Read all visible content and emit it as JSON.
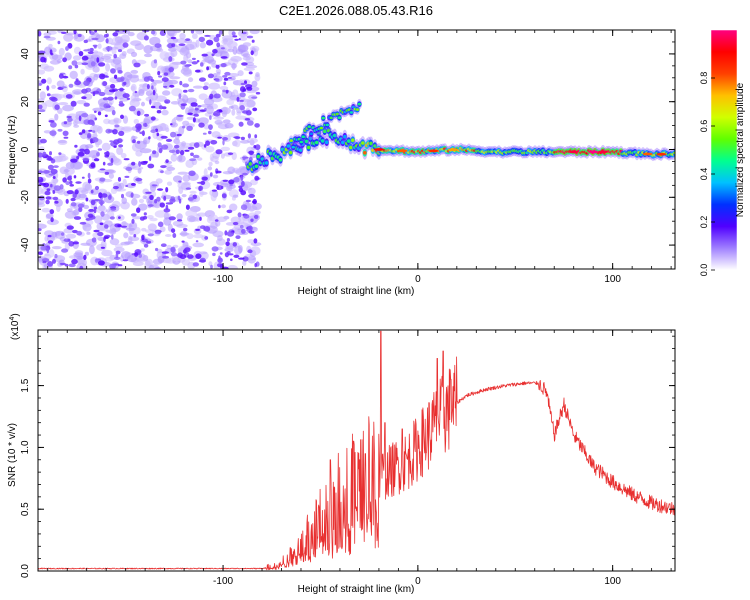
{
  "title": "C2E1.2026.088.05.43.R16",
  "chart_data": [
    {
      "type": "heatmap",
      "xlabel": "Height of straight line (km)",
      "ylabel": "Frequency (Hz)",
      "xlim": [
        -195,
        132
      ],
      "ylim": [
        -50,
        50
      ],
      "xticks": [
        -100,
        0,
        100
      ],
      "yticks": [
        -40,
        -20,
        0,
        20,
        40
      ],
      "colorbar": {
        "label": "Normalized spectral amplitude",
        "range": [
          0,
          1
        ],
        "ticks": [
          "0.0",
          "0.2",
          "0.4",
          "0.6",
          "0.8"
        ],
        "colors": [
          "#ffffff",
          "#a080ff",
          "#5000ff",
          "#0030ff",
          "#00c0ff",
          "#00ff90",
          "#60ff00",
          "#d0ff00",
          "#ffc000",
          "#ff4000",
          "#ff0000",
          "#ff0080"
        ]
      },
      "ridge": [
        {
          "x": -87,
          "f": -8
        },
        {
          "x": -80,
          "f": -4
        },
        {
          "x": -70,
          "f": -2
        },
        {
          "x": -60,
          "f": 2
        },
        {
          "x": -50,
          "f": 5
        },
        {
          "x": -42,
          "f": 6
        },
        {
          "x": -35,
          "f": 3
        },
        {
          "x": -28,
          "f": 1
        },
        {
          "x": -20,
          "f": 0
        },
        {
          "x": 0,
          "f": -1
        },
        {
          "x": 20,
          "f": 0
        },
        {
          "x": 40,
          "f": -1
        },
        {
          "x": 60,
          "f": -1
        },
        {
          "x": 80,
          "f": -1
        },
        {
          "x": 100,
          "f": -1
        },
        {
          "x": 120,
          "f": -2
        },
        {
          "x": 132,
          "f": -2
        }
      ],
      "branch": [
        {
          "x": -65,
          "f": 2
        },
        {
          "x": -55,
          "f": 8
        },
        {
          "x": -45,
          "f": 13
        },
        {
          "x": -35,
          "f": 17
        },
        {
          "x": -30,
          "f": 19
        }
      ],
      "noise_region_x": [
        -195,
        -82
      ]
    },
    {
      "type": "line",
      "xlabel": "Height of straight line (km)",
      "ylabel": "SNR (10 * v/v)",
      "scale_label": "(x10",
      "scale_exp": "4",
      "scale_close": ")",
      "xlim": [
        -195,
        132
      ],
      "ylim": [
        0,
        1.95
      ],
      "xticks": [
        -100,
        0,
        100
      ],
      "yticks": [
        "0.0",
        "0.5",
        "1.0",
        "1.5"
      ],
      "ytick_values": [
        0,
        0.5,
        1.0,
        1.5
      ],
      "series": [
        {
          "name": "SNR",
          "color": "#e83030",
          "envelope": [
            {
              "x": -195,
              "y": 0.02
            },
            {
              "x": -80,
              "y": 0.02
            },
            {
              "x": -72,
              "y": 0.05
            },
            {
              "x": -65,
              "y": 0.12
            },
            {
              "x": -55,
              "y": 0.3
            },
            {
              "x": -45,
              "y": 0.5
            },
            {
              "x": -35,
              "y": 0.65
            },
            {
              "x": -25,
              "y": 0.75
            },
            {
              "x": -15,
              "y": 0.8
            },
            {
              "x": -5,
              "y": 0.9
            },
            {
              "x": 5,
              "y": 1.1
            },
            {
              "x": 15,
              "y": 1.3
            },
            {
              "x": 25,
              "y": 1.42
            },
            {
              "x": 35,
              "y": 1.47
            },
            {
              "x": 45,
              "y": 1.5
            },
            {
              "x": 55,
              "y": 1.52
            },
            {
              "x": 62,
              "y": 1.52
            },
            {
              "x": 66,
              "y": 1.45
            },
            {
              "x": 70,
              "y": 1.1
            },
            {
              "x": 75,
              "y": 1.35
            },
            {
              "x": 80,
              "y": 1.1
            },
            {
              "x": 90,
              "y": 0.85
            },
            {
              "x": 100,
              "y": 0.72
            },
            {
              "x": 110,
              "y": 0.62
            },
            {
              "x": 120,
              "y": 0.55
            },
            {
              "x": 132,
              "y": 0.5
            }
          ],
          "spikes": [
            {
              "x": -19,
              "y": 1.94
            },
            {
              "x": -17,
              "y": 1.2
            },
            {
              "x": -33,
              "y": 1.05
            },
            {
              "x": -27,
              "y": 0.95
            },
            {
              "x": -45,
              "y": 0.9
            },
            {
              "x": -8,
              "y": 1.15
            },
            {
              "x": 10,
              "y": 1.72
            },
            {
              "x": 13,
              "y": 1.78
            },
            {
              "x": 17,
              "y": 1.55
            }
          ]
        }
      ]
    }
  ]
}
